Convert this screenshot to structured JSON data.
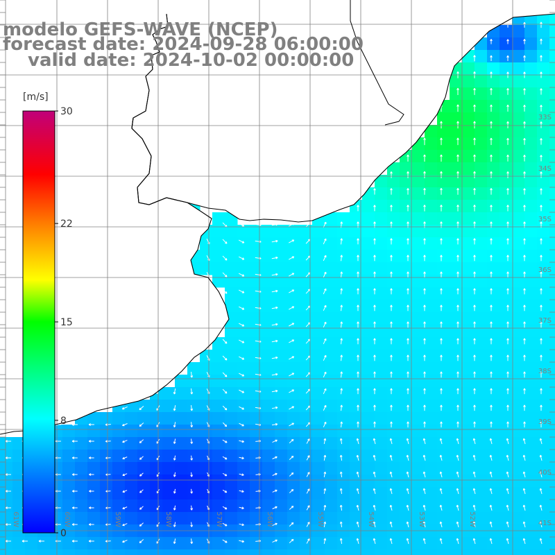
{
  "title": {
    "line1": "modelo GEFS-WAVE (NCEP)",
    "line2": "forecast date: 2024-09-28 06:00:00",
    "line3": "valid date: 2024-10-02 00:00:00"
  },
  "colorbar": {
    "unit": "[m/s]",
    "ticks": [
      "30",
      "22",
      "15",
      "8",
      "0"
    ],
    "tick_values": [
      30,
      22,
      15,
      8,
      0
    ],
    "colors": [
      "#0000ff",
      "#0080ff",
      "#00ffff",
      "#00ff00",
      "#ffff00",
      "#ff8000",
      "#ff0000",
      "#c0007a"
    ]
  },
  "map": {
    "lat_labels": [
      "33S",
      "34S",
      "35S",
      "36S",
      "37S",
      "38S",
      "39S",
      "40S",
      "41S"
    ],
    "lon_labels": [
      "61W",
      "60W",
      "59W",
      "58W",
      "57W",
      "56W",
      "55W",
      "54W",
      "53W",
      "52W"
    ],
    "ocean_base_color": "#00d0ff",
    "land_color": "#ffffff",
    "coast_color": "#000000",
    "grid_color": "#808080",
    "arrow_color": "#ffffff"
  }
}
